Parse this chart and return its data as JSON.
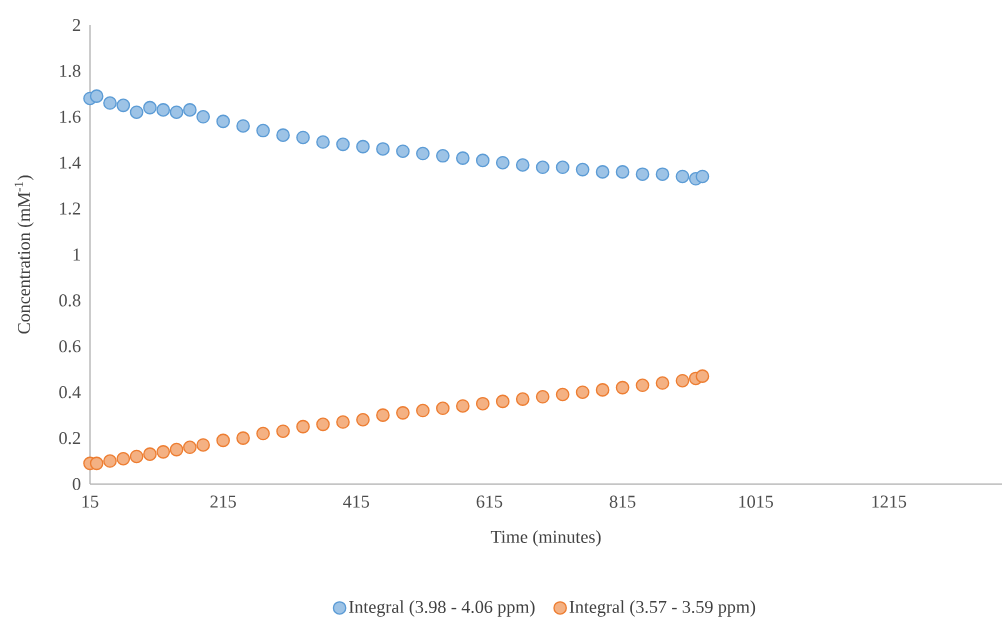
{
  "chart_data": {
    "type": "scatter",
    "xlabel": "Time (minutes)",
    "ylabel": "Concentration (mM$^{-1}$)",
    "x": [
      15,
      25,
      45,
      65,
      85,
      105,
      125,
      145,
      165,
      185,
      215,
      245,
      275,
      305,
      335,
      365,
      395,
      425,
      455,
      485,
      515,
      545,
      575,
      605,
      635,
      665,
      695,
      725,
      755,
      785,
      815,
      845,
      875,
      905,
      925,
      935
    ],
    "series": [
      {
        "name": "Integral (3.98 - 4.06 ppm)",
        "color": "#5b9bd5",
        "values": [
          1.68,
          1.69,
          1.66,
          1.65,
          1.62,
          1.64,
          1.63,
          1.62,
          1.63,
          1.6,
          1.58,
          1.56,
          1.54,
          1.52,
          1.51,
          1.49,
          1.48,
          1.47,
          1.46,
          1.45,
          1.44,
          1.43,
          1.42,
          1.41,
          1.4,
          1.39,
          1.38,
          1.38,
          1.37,
          1.36,
          1.36,
          1.35,
          1.35,
          1.34,
          1.33,
          1.34
        ]
      },
      {
        "name": "Integral (3.57 - 3.59 ppm)",
        "color": "#ed7d31",
        "values": [
          0.09,
          0.09,
          0.1,
          0.11,
          0.12,
          0.13,
          0.14,
          0.15,
          0.16,
          0.17,
          0.19,
          0.2,
          0.22,
          0.23,
          0.25,
          0.26,
          0.27,
          0.28,
          0.3,
          0.31,
          0.32,
          0.33,
          0.34,
          0.35,
          0.36,
          0.37,
          0.38,
          0.39,
          0.4,
          0.41,
          0.42,
          0.43,
          0.44,
          0.45,
          0.46,
          0.47
        ]
      }
    ],
    "xlim": [
      15,
      1385
    ],
    "xticks": [
      15,
      215,
      415,
      615,
      815,
      1015,
      1215
    ],
    "ylim": [
      0,
      2
    ],
    "yticks": [
      0,
      0.2,
      0.4,
      0.6,
      0.8,
      1,
      1.2,
      1.4,
      1.6,
      1.8,
      2
    ],
    "grid": false,
    "legend": "bottom",
    "marker": "circle"
  }
}
